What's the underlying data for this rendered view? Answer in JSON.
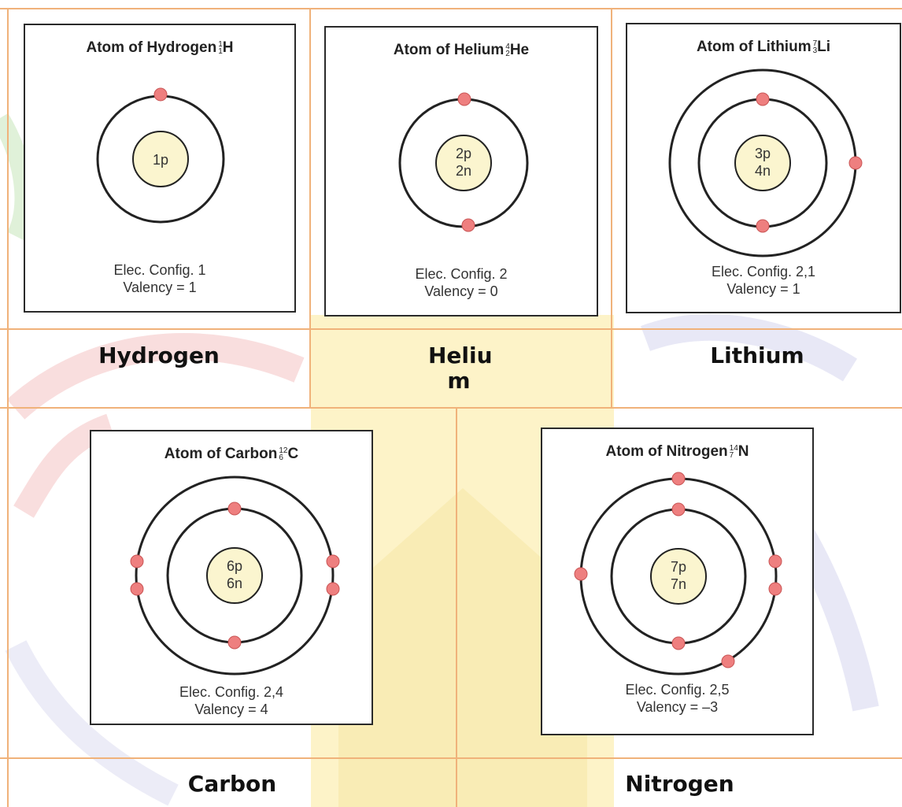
{
  "atoms": [
    {
      "title": "Atom of Hydrogen",
      "mass": "1",
      "number": "1",
      "symbol": "H",
      "nucleus": [
        "1p"
      ],
      "config": "Elec. Config. 1",
      "valency": "Valency = 1",
      "name": "Hydrogen"
    },
    {
      "title": "Atom of Helium",
      "mass": "4",
      "number": "2",
      "symbol": "He",
      "nucleus": [
        "2p",
        "2n"
      ],
      "config": "Elec. Config. 2",
      "valency": "Valency = 0",
      "name": "Heliu m"
    },
    {
      "title": "Atom of Lithium",
      "mass": "7",
      "number": "3",
      "symbol": "Li",
      "nucleus": [
        "3p",
        "4n"
      ],
      "config": "Elec. Config. 2,1",
      "valency": "Valency = 1",
      "name": "Lithium"
    },
    {
      "title": "Atom of Carbon",
      "mass": "12",
      "number": "6",
      "symbol": "C",
      "nucleus": [
        "6p",
        "6n"
      ],
      "config": "Elec. Config. 2,4",
      "valency": "Valency = 4",
      "name": "Carbon"
    },
    {
      "title": "Atom of Nitrogen",
      "mass": "14",
      "number": "7",
      "symbol": "N",
      "nucleus": [
        "7p",
        "7n"
      ],
      "config": "Elec. Config. 2,5",
      "valency": "Valency = –3",
      "name": "Nitrogen"
    }
  ],
  "colors": {
    "grid": "#f0b27a",
    "electron": "#ee7f7f",
    "nucleus": "#fbf5cf",
    "shell": "#222222"
  }
}
